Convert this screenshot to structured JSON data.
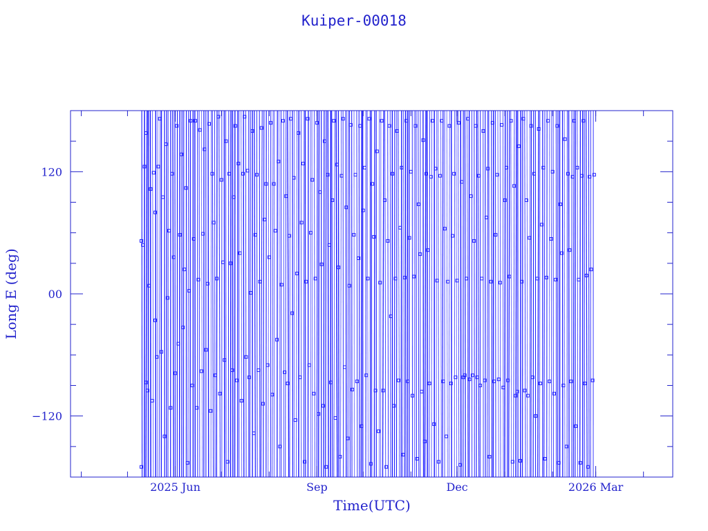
{
  "chart_data": {
    "type": "scatter",
    "title": "Kuiper-00018",
    "xlabel": "Time(UTC)",
    "ylabel": "Long E (deg)",
    "ylim": [
      -180,
      180
    ],
    "xlim": [
      "2025-03-25",
      "2026-04-20"
    ],
    "x_ticks": [
      {
        "date": "2025-06-01",
        "label": "2025 Jun"
      },
      {
        "date": "2025-09-01",
        "label": "Sep"
      },
      {
        "date": "2025-12-01",
        "label": "Dec"
      },
      {
        "date": "2026-03-01",
        "label": "2026 Mar"
      }
    ],
    "y_ticks": [
      {
        "value": 120,
        "label": "120"
      },
      {
        "value": 0,
        "label": "00"
      },
      {
        "value": -120,
        "label": "−120"
      }
    ],
    "series_color": "#1f1fff",
    "axis_color": "#2222cc",
    "grid": false,
    "marker": "square",
    "data_span": [
      "2025-05-10",
      "2026-02-28"
    ],
    "points": [
      [
        "2025-05-10",
        52
      ],
      [
        "2025-05-10",
        -170
      ],
      [
        "2025-05-11",
        48
      ],
      [
        "2025-05-12",
        125
      ],
      [
        "2025-05-13",
        158
      ],
      [
        "2025-05-13",
        -87
      ],
      [
        "2025-05-14",
        -95
      ],
      [
        "2025-05-15",
        8
      ],
      [
        "2025-05-16",
        103
      ],
      [
        "2025-05-17",
        -105
      ],
      [
        "2025-05-18",
        119
      ],
      [
        "2025-05-19",
        -26
      ],
      [
        "2025-05-19",
        80
      ],
      [
        "2025-05-20",
        -62
      ],
      [
        "2025-05-21",
        125
      ],
      [
        "2025-05-22",
        172
      ],
      [
        "2025-05-23",
        -57
      ],
      [
        "2025-05-24",
        95
      ],
      [
        "2025-05-25",
        -140
      ],
      [
        "2025-05-26",
        147
      ],
      [
        "2025-05-27",
        -4
      ],
      [
        "2025-05-28",
        62
      ],
      [
        "2025-05-29",
        -112
      ],
      [
        "2025-05-30",
        118
      ],
      [
        "2025-05-31",
        36
      ],
      [
        "2025-06-01",
        -78
      ],
      [
        "2025-06-02",
        165
      ],
      [
        "2025-06-03",
        -49
      ],
      [
        "2025-06-04",
        58
      ],
      [
        "2025-06-05",
        137
      ],
      [
        "2025-06-06",
        -33
      ],
      [
        "2025-06-07",
        24
      ],
      [
        "2025-06-08",
        104
      ],
      [
        "2025-06-09",
        -166
      ],
      [
        "2025-06-10",
        3
      ],
      [
        "2025-06-11",
        170
      ],
      [
        "2025-06-12",
        -90
      ],
      [
        "2025-06-13",
        54
      ],
      [
        "2025-06-14",
        170
      ],
      [
        "2025-06-15",
        -112
      ],
      [
        "2025-06-16",
        14
      ],
      [
        "2025-06-17",
        161
      ],
      [
        "2025-06-18",
        -76
      ],
      [
        "2025-06-19",
        59
      ],
      [
        "2025-06-20",
        142
      ],
      [
        "2025-06-21",
        -55
      ],
      [
        "2025-06-22",
        10
      ],
      [
        "2025-06-23",
        167
      ],
      [
        "2025-06-24",
        -115
      ],
      [
        "2025-06-25",
        118
      ],
      [
        "2025-06-26",
        70
      ],
      [
        "2025-06-27",
        -80
      ],
      [
        "2025-06-28",
        15
      ],
      [
        "2025-06-29",
        174
      ],
      [
        "2025-06-30",
        -98
      ],
      [
        "2025-07-01",
        112
      ],
      [
        "2025-07-02",
        31
      ],
      [
        "2025-07-03",
        -65
      ],
      [
        "2025-07-04",
        150
      ],
      [
        "2025-07-05",
        -165
      ],
      [
        "2025-07-06",
        118
      ],
      [
        "2025-07-07",
        30
      ],
      [
        "2025-07-08",
        -75
      ],
      [
        "2025-07-09",
        95
      ],
      [
        "2025-07-10",
        165
      ],
      [
        "2025-07-11",
        -85
      ],
      [
        "2025-07-12",
        128
      ],
      [
        "2025-07-13",
        40
      ],
      [
        "2025-07-14",
        -105
      ],
      [
        "2025-07-15",
        118
      ],
      [
        "2025-07-16",
        174
      ],
      [
        "2025-07-17",
        -62
      ],
      [
        "2025-07-18",
        121
      ],
      [
        "2025-07-19",
        -82
      ],
      [
        "2025-07-20",
        1
      ],
      [
        "2025-07-21",
        160
      ],
      [
        "2025-07-22",
        -137
      ],
      [
        "2025-07-23",
        58
      ],
      [
        "2025-07-24",
        117
      ],
      [
        "2025-07-25",
        -75
      ],
      [
        "2025-07-26",
        12
      ],
      [
        "2025-07-27",
        163
      ],
      [
        "2025-07-28",
        -108
      ],
      [
        "2025-07-29",
        73
      ],
      [
        "2025-07-30",
        108
      ],
      [
        "2025-07-31",
        -70
      ],
      [
        "2025-08-01",
        36
      ],
      [
        "2025-08-02",
        168
      ],
      [
        "2025-08-03",
        -99
      ],
      [
        "2025-08-04",
        108
      ],
      [
        "2025-08-05",
        62
      ],
      [
        "2025-08-06",
        -45
      ],
      [
        "2025-08-07",
        130
      ],
      [
        "2025-08-08",
        -150
      ],
      [
        "2025-08-09",
        9
      ],
      [
        "2025-08-10",
        170
      ],
      [
        "2025-08-11",
        -77
      ],
      [
        "2025-08-12",
        96
      ],
      [
        "2025-08-13",
        -88
      ],
      [
        "2025-08-14",
        57
      ],
      [
        "2025-08-15",
        172
      ],
      [
        "2025-08-16",
        -19
      ],
      [
        "2025-08-17",
        114
      ],
      [
        "2025-08-18",
        -124
      ],
      [
        "2025-08-19",
        20
      ],
      [
        "2025-08-20",
        158
      ],
      [
        "2025-08-21",
        -82
      ],
      [
        "2025-08-22",
        70
      ],
      [
        "2025-08-23",
        128
      ],
      [
        "2025-08-24",
        -165
      ],
      [
        "2025-08-25",
        12
      ],
      [
        "2025-08-26",
        172
      ],
      [
        "2025-08-27",
        -70
      ],
      [
        "2025-08-28",
        60
      ],
      [
        "2025-08-29",
        112
      ],
      [
        "2025-08-30",
        -98
      ],
      [
        "2025-08-31",
        15
      ],
      [
        "2025-09-01",
        168
      ],
      [
        "2025-09-02",
        -118
      ],
      [
        "2025-09-03",
        100
      ],
      [
        "2025-09-04",
        29
      ],
      [
        "2025-09-05",
        -110
      ],
      [
        "2025-09-06",
        150
      ],
      [
        "2025-09-07",
        -170
      ],
      [
        "2025-09-08",
        117
      ],
      [
        "2025-09-09",
        48
      ],
      [
        "2025-09-10",
        -87
      ],
      [
        "2025-09-11",
        92
      ],
      [
        "2025-09-12",
        170
      ],
      [
        "2025-09-13",
        -122
      ],
      [
        "2025-09-14",
        127
      ],
      [
        "2025-09-15",
        26
      ],
      [
        "2025-09-16",
        -160
      ],
      [
        "2025-09-17",
        116
      ],
      [
        "2025-09-18",
        172
      ],
      [
        "2025-09-19",
        -72
      ],
      [
        "2025-09-20",
        85
      ],
      [
        "2025-09-21",
        -142
      ],
      [
        "2025-09-22",
        8
      ],
      [
        "2025-09-23",
        166
      ],
      [
        "2025-09-24",
        -94
      ],
      [
        "2025-09-25",
        58
      ],
      [
        "2025-09-26",
        117
      ],
      [
        "2025-09-27",
        -86
      ],
      [
        "2025-09-28",
        35
      ],
      [
        "2025-09-29",
        165
      ],
      [
        "2025-09-30",
        -130
      ],
      [
        "2025-10-01",
        82
      ],
      [
        "2025-10-02",
        124
      ],
      [
        "2025-10-03",
        -80
      ],
      [
        "2025-10-04",
        15
      ],
      [
        "2025-10-05",
        172
      ],
      [
        "2025-10-06",
        -167
      ],
      [
        "2025-10-07",
        108
      ],
      [
        "2025-10-08",
        56
      ],
      [
        "2025-10-09",
        -95
      ],
      [
        "2025-10-10",
        140
      ],
      [
        "2025-10-11",
        -135
      ],
      [
        "2025-10-12",
        11
      ],
      [
        "2025-10-13",
        170
      ],
      [
        "2025-10-14",
        -95
      ],
      [
        "2025-10-15",
        92
      ],
      [
        "2025-10-16",
        -170
      ],
      [
        "2025-10-17",
        52
      ],
      [
        "2025-10-18",
        165
      ],
      [
        "2025-10-19",
        -22
      ],
      [
        "2025-10-20",
        118
      ],
      [
        "2025-10-21",
        -110
      ],
      [
        "2025-10-22",
        15
      ],
      [
        "2025-10-23",
        160
      ],
      [
        "2025-10-24",
        -85
      ],
      [
        "2025-10-25",
        65
      ],
      [
        "2025-10-26",
        124
      ],
      [
        "2025-10-27",
        -158
      ],
      [
        "2025-10-28",
        16
      ],
      [
        "2025-10-29",
        170
      ],
      [
        "2025-10-30",
        -86
      ],
      [
        "2025-10-31",
        55
      ],
      [
        "2025-11-01",
        120
      ],
      [
        "2025-11-02",
        -100
      ],
      [
        "2025-11-03",
        17
      ],
      [
        "2025-11-04",
        165
      ],
      [
        "2025-11-05",
        -162
      ],
      [
        "2025-11-06",
        88
      ],
      [
        "2025-11-07",
        39
      ],
      [
        "2025-11-08",
        -96
      ],
      [
        "2025-11-09",
        151
      ],
      [
        "2025-11-10",
        -145
      ],
      [
        "2025-11-11",
        118
      ],
      [
        "2025-11-12",
        43
      ],
      [
        "2025-11-13",
        -88
      ],
      [
        "2025-11-14",
        115
      ],
      [
        "2025-11-15",
        170
      ],
      [
        "2025-11-16",
        -128
      ],
      [
        "2025-11-17",
        123
      ],
      [
        "2025-11-18",
        13
      ],
      [
        "2025-11-19",
        -165
      ],
      [
        "2025-11-20",
        116
      ],
      [
        "2025-11-21",
        170
      ],
      [
        "2025-11-22",
        -86
      ],
      [
        "2025-11-23",
        64
      ],
      [
        "2025-11-24",
        -140
      ],
      [
        "2025-11-25",
        12
      ],
      [
        "2025-11-26",
        165
      ],
      [
        "2025-11-27",
        -88
      ],
      [
        "2025-11-28",
        57
      ],
      [
        "2025-11-29",
        118
      ],
      [
        "2025-11-30",
        -82
      ],
      [
        "2025-12-01",
        13
      ],
      [
        "2025-12-02",
        168
      ],
      [
        "2025-12-03",
        -168
      ],
      [
        "2025-12-04",
        110
      ],
      [
        "2025-12-05",
        -82
      ],
      [
        "2025-12-06",
        -80
      ],
      [
        "2025-12-07",
        15
      ],
      [
        "2025-12-08",
        172
      ],
      [
        "2025-12-09",
        -84
      ],
      [
        "2025-12-10",
        96
      ],
      [
        "2025-12-11",
        -80
      ],
      [
        "2025-12-12",
        52
      ],
      [
        "2025-12-13",
        165
      ],
      [
        "2025-12-14",
        -82
      ],
      [
        "2025-12-15",
        116
      ],
      [
        "2025-12-16",
        -90
      ],
      [
        "2025-12-17",
        15
      ],
      [
        "2025-12-18",
        160
      ],
      [
        "2025-12-19",
        -85
      ],
      [
        "2025-12-20",
        75
      ],
      [
        "2025-12-21",
        123
      ],
      [
        "2025-12-22",
        -160
      ],
      [
        "2025-12-23",
        12
      ],
      [
        "2025-12-24",
        168
      ],
      [
        "2025-12-25",
        -86
      ],
      [
        "2025-12-26",
        58
      ],
      [
        "2025-12-27",
        117
      ],
      [
        "2025-12-28",
        -84
      ],
      [
        "2025-12-29",
        11
      ],
      [
        "2025-12-30",
        166
      ],
      [
        "2025-12-31",
        -92
      ],
      [
        "2026-01-01",
        92
      ],
      [
        "2026-01-02",
        124
      ],
      [
        "2026-01-03",
        -85
      ],
      [
        "2026-01-04",
        17
      ],
      [
        "2026-01-05",
        170
      ],
      [
        "2026-01-06",
        -165
      ],
      [
        "2026-01-07",
        106
      ],
      [
        "2026-01-08",
        -100
      ],
      [
        "2026-01-09",
        -96
      ],
      [
        "2026-01-10",
        145
      ],
      [
        "2026-01-11",
        -164
      ],
      [
        "2026-01-12",
        12
      ],
      [
        "2026-01-13",
        172
      ],
      [
        "2026-01-14",
        -95
      ],
      [
        "2026-01-15",
        92
      ],
      [
        "2026-01-16",
        -100
      ],
      [
        "2026-01-17",
        55
      ],
      [
        "2026-01-18",
        165
      ],
      [
        "2026-01-19",
        -82
      ],
      [
        "2026-01-20",
        118
      ],
      [
        "2026-01-21",
        -120
      ],
      [
        "2026-01-22",
        15
      ],
      [
        "2026-01-23",
        162
      ],
      [
        "2026-01-24",
        -88
      ],
      [
        "2026-01-25",
        68
      ],
      [
        "2026-01-26",
        124
      ],
      [
        "2026-01-27",
        -162
      ],
      [
        "2026-01-28",
        16
      ],
      [
        "2026-01-29",
        170
      ],
      [
        "2026-01-30",
        -86
      ],
      [
        "2026-01-31",
        54
      ],
      [
        "2026-02-01",
        120
      ],
      [
        "2026-02-02",
        -98
      ],
      [
        "2026-02-03",
        14
      ],
      [
        "2026-02-04",
        165
      ],
      [
        "2026-02-05",
        -166
      ],
      [
        "2026-02-06",
        88
      ],
      [
        "2026-02-07",
        40
      ],
      [
        "2026-02-08",
        -90
      ],
      [
        "2026-02-09",
        152
      ],
      [
        "2026-02-10",
        -150
      ],
      [
        "2026-02-11",
        118
      ],
      [
        "2026-02-12",
        43
      ],
      [
        "2026-02-13",
        -86
      ],
      [
        "2026-02-14",
        115
      ],
      [
        "2026-02-15",
        170
      ],
      [
        "2026-02-16",
        -130
      ],
      [
        "2026-02-17",
        124
      ],
      [
        "2026-02-18",
        14
      ],
      [
        "2026-02-19",
        -166
      ],
      [
        "2026-02-20",
        116
      ],
      [
        "2026-02-21",
        170
      ],
      [
        "2026-02-22",
        -88
      ],
      [
        "2026-02-23",
        18
      ],
      [
        "2026-02-24",
        -170
      ],
      [
        "2026-02-25",
        115
      ],
      [
        "2026-02-26",
        24
      ],
      [
        "2026-02-27",
        -85
      ],
      [
        "2026-02-28",
        117
      ]
    ]
  }
}
